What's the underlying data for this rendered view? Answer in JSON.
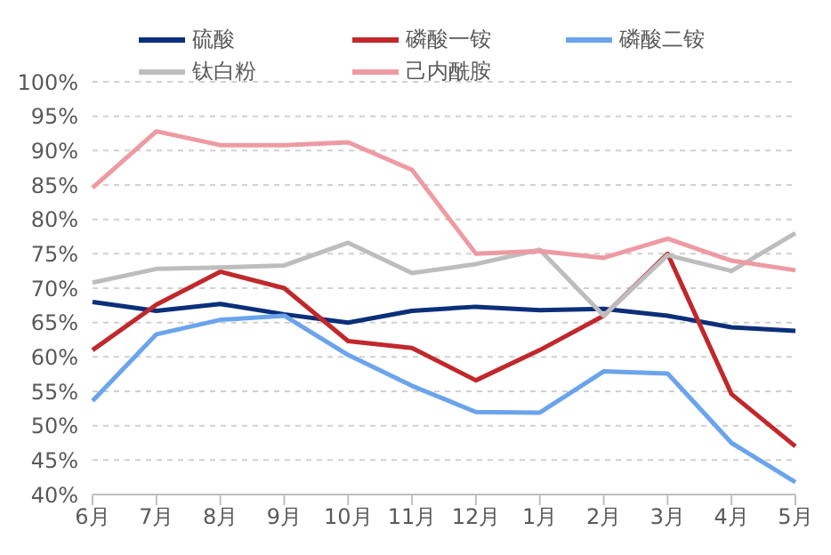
{
  "chart_data": {
    "type": "line",
    "categories": [
      "6月",
      "7月",
      "8月",
      "9月",
      "10月",
      "11月",
      "12月",
      "1月",
      "2月",
      "3月",
      "4月",
      "5月"
    ],
    "series": [
      {
        "name": "硫酸",
        "color": "#0b2f7a",
        "values": [
          68,
          66.7,
          67.7,
          66.2,
          65,
          66.7,
          67.3,
          66.8,
          67,
          66,
          64.3,
          63.8
        ]
      },
      {
        "name": "磷酸一铵",
        "color": "#c0282b",
        "values": [
          61,
          67.6,
          72.4,
          70,
          62.3,
          61.3,
          56.6,
          61,
          66,
          75,
          54.6,
          47
        ]
      },
      {
        "name": "磷酸二铵",
        "color": "#6aa4ec",
        "values": [
          53.6,
          63.3,
          65.4,
          66,
          60.3,
          55.8,
          52,
          51.9,
          57.9,
          57.6,
          47.5,
          41.8
        ]
      },
      {
        "name": "钛白粉",
        "color": "#bdbdbd",
        "values": [
          70.8,
          72.8,
          73,
          73.3,
          76.6,
          72.2,
          73.5,
          75.6,
          66,
          74.8,
          72.5,
          78
        ]
      },
      {
        "name": "己内酰胺",
        "color": "#ee9aa3",
        "values": [
          84.6,
          92.8,
          90.8,
          90.8,
          91.2,
          87.2,
          75,
          75.4,
          74.4,
          77.2,
          74,
          72.6
        ]
      }
    ],
    "ylim": [
      40,
      100
    ],
    "yticks": [
      {
        "value": 40,
        "label": "40%"
      },
      {
        "value": 45,
        "label": "45%"
      },
      {
        "value": 50,
        "label": "50%"
      },
      {
        "value": 55,
        "label": "55%"
      },
      {
        "value": 60,
        "label": "60%"
      },
      {
        "value": 65,
        "label": "65%"
      },
      {
        "value": 70,
        "label": "70%"
      },
      {
        "value": 75,
        "label": "75%"
      },
      {
        "value": 80,
        "label": "80%"
      },
      {
        "value": 85,
        "label": "85%"
      },
      {
        "value": 90,
        "label": "90%"
      },
      {
        "value": 95,
        "label": "95%"
      },
      {
        "value": 100,
        "label": "100%"
      }
    ],
    "grid": "y",
    "legend": "top",
    "marker": "none",
    "line_style": "solid"
  }
}
